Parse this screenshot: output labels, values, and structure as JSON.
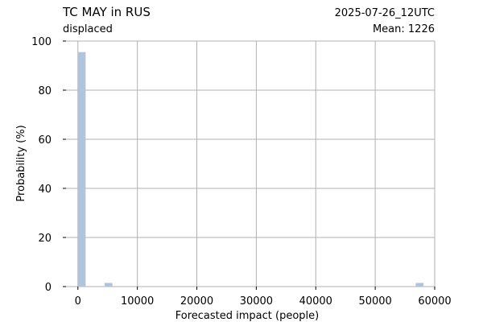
{
  "chart_data": {
    "type": "bar",
    "title": "TC MAY in RUS",
    "subtitle": "displaced",
    "date_label": "2025-07-26_12UTC",
    "mean_label": "Mean: 1226",
    "xlabel": "Forecasted impact (people)",
    "ylabel": "Probability (%)",
    "xlim": [
      -2000,
      60000
    ],
    "ylim": [
      0,
      100
    ],
    "x_ticks": [
      0,
      10000,
      20000,
      30000,
      40000,
      50000,
      60000
    ],
    "y_ticks": [
      0,
      20,
      40,
      60,
      80,
      100
    ],
    "grid": true,
    "bar_color": "#b0c4de",
    "date_color": "#ff0000",
    "bins": [
      {
        "x0": 0,
        "x1": 1300,
        "value": 95.5
      },
      {
        "x0": 4500,
        "x1": 5800,
        "value": 1.5
      },
      {
        "x0": 56800,
        "x1": 58100,
        "value": 1.5
      }
    ]
  }
}
